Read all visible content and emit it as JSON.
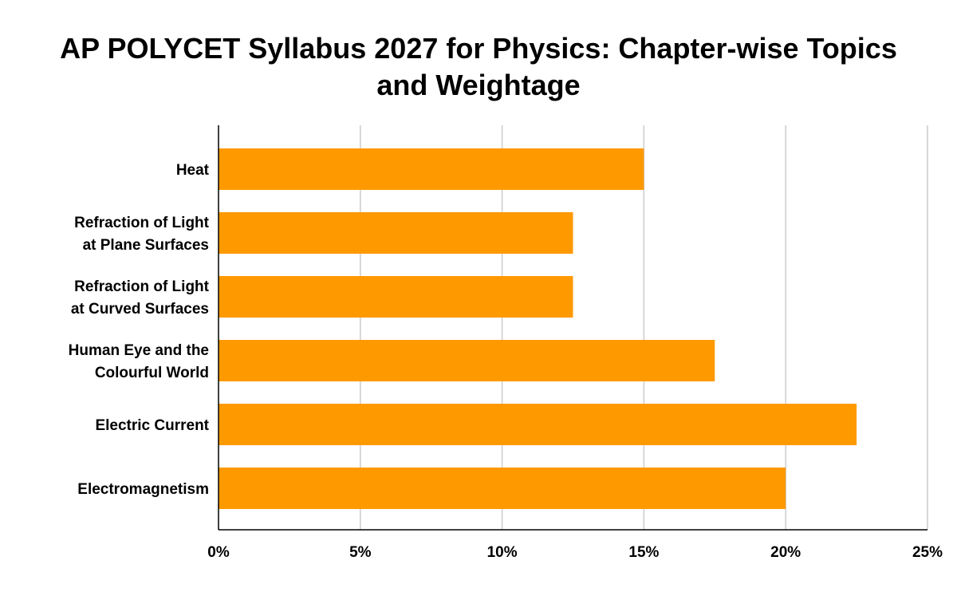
{
  "chart_data": {
    "type": "bar",
    "orientation": "horizontal",
    "title": "AP POLYCET Syllabus 2027 for Physics: Chapter-wise Topics and Weightage",
    "categories": [
      [
        "Heat"
      ],
      [
        "Refraction of Light",
        "at Plane Surfaces"
      ],
      [
        "Refraction of Light",
        "at Curved Surfaces"
      ],
      [
        "Human Eye and the",
        "Colourful World"
      ],
      [
        "Electric Current"
      ],
      [
        "Electromagnetism"
      ]
    ],
    "values": [
      0.15,
      0.125,
      0.125,
      0.175,
      0.225,
      0.2
    ],
    "xlim": [
      0,
      0.25
    ],
    "x_ticks": [
      {
        "value": 0,
        "label": "0%"
      },
      {
        "value": 0.05,
        "label": "5%"
      },
      {
        "value": 0.1,
        "label": "10%"
      },
      {
        "value": 0.15,
        "label": "15%"
      },
      {
        "value": 0.2,
        "label": "20%"
      },
      {
        "value": 0.25,
        "label": "25%"
      }
    ],
    "grid": "vertical",
    "bar_color": "#ff9900",
    "grid_color": "#cccccc",
    "axis_color": "#000000"
  }
}
